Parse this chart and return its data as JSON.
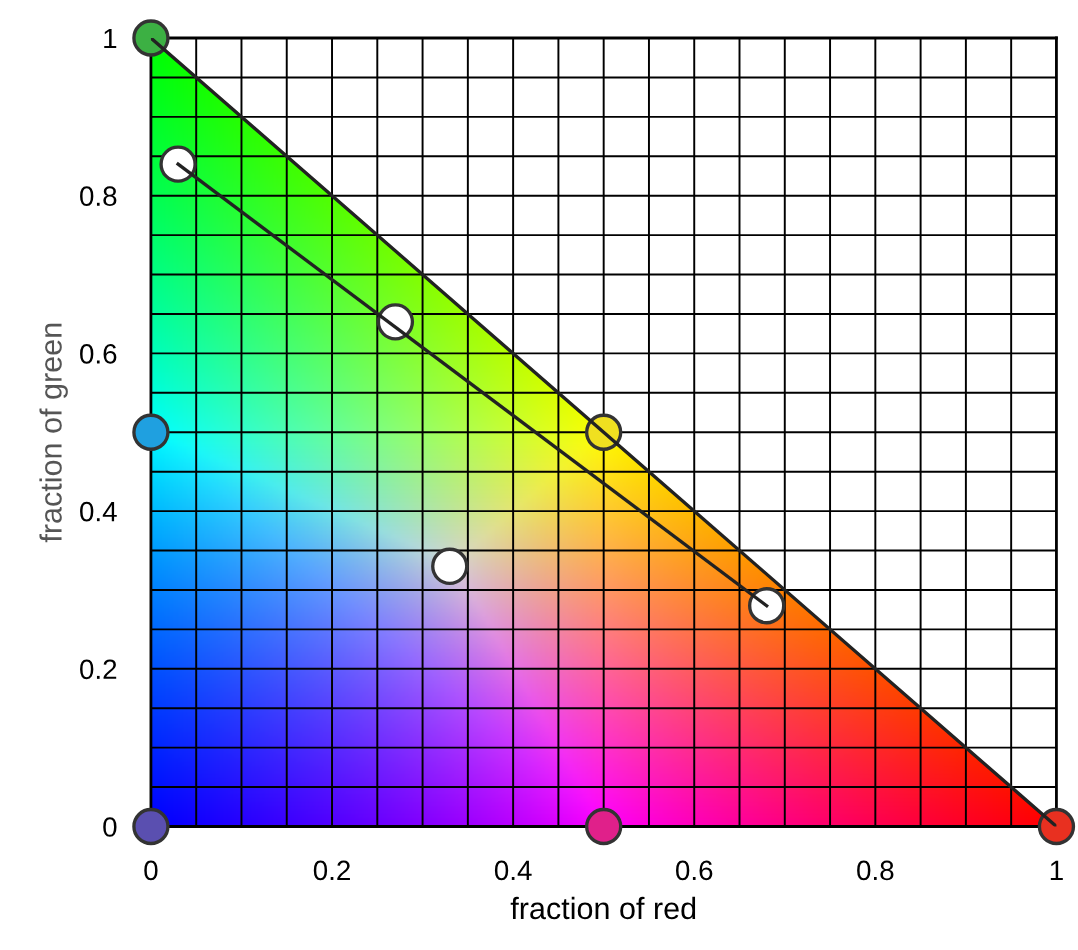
{
  "chart_data": {
    "type": "scatter",
    "xlabel": "fraction of red",
    "ylabel": "fraction of green",
    "xlim": [
      0,
      1
    ],
    "ylim": [
      0,
      1
    ],
    "xticks": [
      0,
      {
        "value": 0.05,
        "label": null
      },
      {
        "value": 0.1,
        "label": null
      },
      {
        "value": 0.15,
        "label": null
      },
      0.2,
      {
        "value": 0.25,
        "label": null
      },
      {
        "value": 0.3,
        "label": null
      },
      {
        "value": 0.35,
        "label": null
      },
      0.4,
      {
        "value": 0.45,
        "label": null
      },
      {
        "value": 0.5,
        "label": null
      },
      {
        "value": 0.55,
        "label": null
      },
      0.6,
      {
        "value": 0.65,
        "label": null
      },
      {
        "value": 0.7,
        "label": null
      },
      {
        "value": 0.75,
        "label": null
      },
      0.8,
      {
        "value": 0.85,
        "label": null
      },
      {
        "value": 0.9,
        "label": null
      },
      {
        "value": 0.95,
        "label": null
      },
      1
    ],
    "yticks": [
      0,
      {
        "value": 0.05,
        "label": null
      },
      {
        "value": 0.1,
        "label": null
      },
      {
        "value": 0.15,
        "label": null
      },
      0.2,
      {
        "value": 0.25,
        "label": null
      },
      {
        "value": 0.3,
        "label": null
      },
      {
        "value": 0.35,
        "label": null
      },
      0.4,
      {
        "value": 0.45,
        "label": null
      },
      {
        "value": 0.5,
        "label": null
      },
      {
        "value": 0.55,
        "label": null
      },
      0.6,
      {
        "value": 0.65,
        "label": null
      },
      {
        "value": 0.7,
        "label": null
      },
      {
        "value": 0.75,
        "label": null
      },
      0.8,
      {
        "value": 0.85,
        "label": null
      },
      {
        "value": 0.9,
        "label": null
      },
      {
        "value": 0.95,
        "label": null
      },
      1
    ],
    "grid": true,
    "marker": "circle",
    "series": [
      {
        "type": "line",
        "marker": "none",
        "color": "#222222",
        "x": [
          0,
          1
        ],
        "values": [
          1,
          0
        ]
      },
      {
        "type": "line",
        "marker": "none",
        "color": "#222222",
        "x": [
          0.03,
          0.68
        ],
        "values": [
          0.84,
          0.28
        ]
      },
      {
        "color": "#3cb043",
        "x": [
          0
        ],
        "values": [
          1
        ]
      },
      {
        "color": "#1fa0e0",
        "x": [
          0
        ],
        "values": [
          0.5
        ]
      },
      {
        "color": "#5a4fb0",
        "x": [
          0
        ],
        "values": [
          0
        ]
      },
      {
        "color": "#e0208a",
        "x": [
          0.5
        ],
        "values": [
          0
        ]
      },
      {
        "color": "#e83020",
        "x": [
          1
        ],
        "values": [
          0
        ]
      },
      {
        "color": "#f0e020",
        "x": [
          0.5
        ],
        "values": [
          0.5
        ]
      },
      {
        "color": "#ffffff",
        "x": [
          0.03,
          0.27,
          0.33,
          0.68
        ],
        "values": [
          0.84,
          0.64,
          0.33,
          0.28
        ]
      }
    ]
  }
}
